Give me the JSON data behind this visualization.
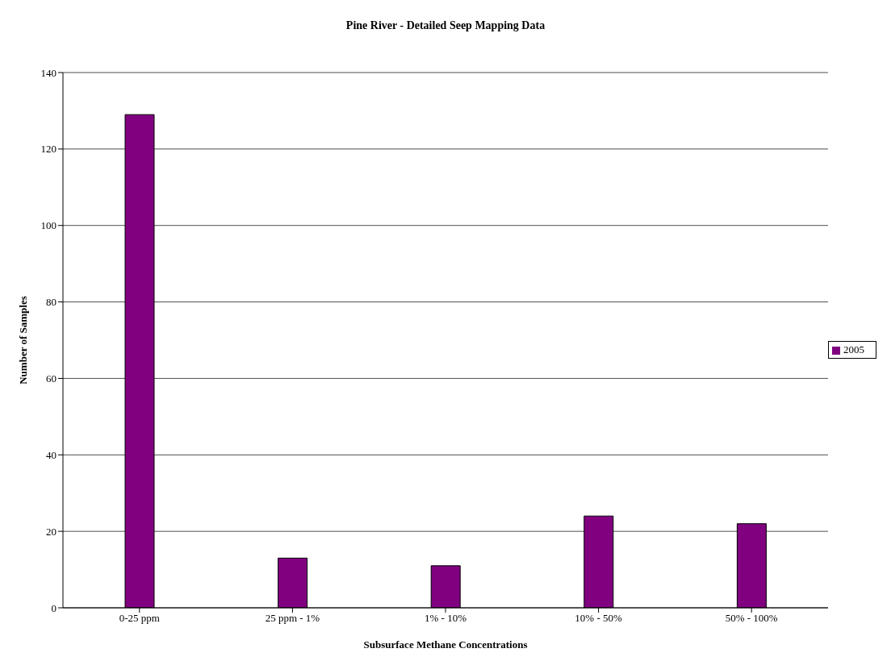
{
  "chart_data": {
    "type": "bar",
    "title": "Pine River - Detailed Seep Mapping Data",
    "xlabel": "Subsurface Methane Concentrations",
    "ylabel": "Number of Samples",
    "categories": [
      "0-25 ppm",
      "25 ppm - 1%",
      "1% - 10%",
      "10% - 50%",
      "50% - 100%"
    ],
    "series": [
      {
        "name": "2005",
        "color": "#800080",
        "values": [
          129,
          13,
          11,
          24,
          22
        ]
      }
    ],
    "ylim": [
      0,
      140
    ],
    "yticks": [
      0,
      20,
      40,
      60,
      80,
      100,
      120,
      140
    ],
    "grid": "y",
    "legend": "right"
  }
}
